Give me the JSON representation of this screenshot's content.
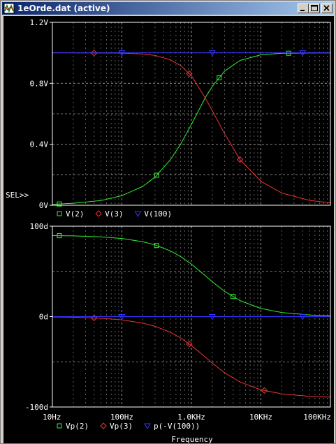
{
  "window": {
    "title": "1eOrde.dat (active)"
  },
  "colors": {
    "background": "#000000",
    "grid": "#9a9a9a",
    "text": "#ffffff",
    "v2": "#33ee33",
    "v3": "#ee3333",
    "v100": "#3333ff",
    "titlebar": "#0a246a"
  },
  "icons": {
    "app": "probe-icon",
    "minimize": "minimize-icon",
    "maximize": "maximize-icon",
    "close": "close-icon"
  },
  "x_ticks": [
    "10Hz",
    "100Hz",
    "1.0KHz",
    "10KHz",
    "100KHz"
  ],
  "x_axis_label": "Frequency",
  "sel_marker": "SEL>>",
  "chart_data": [
    {
      "type": "line",
      "x_scale": "log",
      "xlim": [
        10,
        100000
      ],
      "ylim": [
        0,
        1.2
      ],
      "y_ticks": [
        "1.2V",
        "0.8V",
        "0.4V",
        "0V"
      ],
      "y_tick_values": [
        1.2,
        0.8,
        0.4,
        0
      ],
      "grid": true,
      "legend_position": "bottom-left",
      "series": [
        {
          "name": "V(2)",
          "marker": "square",
          "color": "#33ee33",
          "x": [
            10,
            20,
            50,
            100,
            200,
            300,
            500,
            700,
            1000,
            1600,
            2000,
            3000,
            5000,
            10000,
            20000,
            50000,
            100000
          ],
          "y": [
            0.006,
            0.013,
            0.031,
            0.063,
            0.124,
            0.185,
            0.3,
            0.4,
            0.53,
            0.71,
            0.78,
            0.88,
            0.95,
            0.987,
            0.997,
            0.999,
            1.0
          ]
        },
        {
          "name": "V(3)",
          "marker": "diamond",
          "color": "#ee3333",
          "x": [
            10,
            20,
            50,
            100,
            200,
            300,
            500,
            700,
            1000,
            1600,
            2000,
            3000,
            5000,
            10000,
            20000,
            50000,
            100000
          ],
          "y": [
            1.0,
            1.0,
            0.999,
            0.998,
            0.992,
            0.983,
            0.954,
            0.916,
            0.85,
            0.7,
            0.62,
            0.47,
            0.3,
            0.157,
            0.08,
            0.032,
            0.016
          ]
        },
        {
          "name": "V(100)",
          "marker": "triangle-down",
          "color": "#3333ff",
          "x": [
            10,
            100000
          ],
          "y": [
            1.0,
            1.0
          ]
        }
      ]
    },
    {
      "type": "line",
      "x_scale": "log",
      "xlim": [
        10,
        100000
      ],
      "ylim": [
        -100,
        100
      ],
      "y_ticks": [
        "100d",
        "0d",
        "-100d"
      ],
      "y_tick_values": [
        100,
        0,
        -100
      ],
      "grid": true,
      "legend_position": "bottom-left",
      "series": [
        {
          "name": "Vp(2)",
          "marker": "square",
          "color": "#33ee33",
          "x": [
            10,
            20,
            50,
            100,
            200,
            300,
            500,
            700,
            1000,
            1600,
            2000,
            3000,
            5000,
            10000,
            20000,
            50000,
            100000
          ],
          "y": [
            89.6,
            89.3,
            88.2,
            86.4,
            82.8,
            79.3,
            72.6,
            66.4,
            58.0,
            45.0,
            38.5,
            27.9,
            17.7,
            9.0,
            4.5,
            1.8,
            0.9
          ]
        },
        {
          "name": "Vp(3)",
          "marker": "diamond",
          "color": "#ee3333",
          "x": [
            10,
            20,
            50,
            100,
            200,
            300,
            500,
            700,
            1000,
            1600,
            2000,
            3000,
            5000,
            10000,
            20000,
            50000,
            100000
          ],
          "y": [
            -0.4,
            -0.7,
            -1.8,
            -3.6,
            -7.2,
            -10.7,
            -17.4,
            -23.6,
            -32.0,
            -45.0,
            -51.5,
            -62.1,
            -72.3,
            -81.0,
            -85.5,
            -88.2,
            -89.1
          ]
        },
        {
          "name": "p(-V(100))",
          "marker": "triangle-down",
          "color": "#3333ff",
          "x": [
            10,
            100000
          ],
          "y": [
            0,
            0
          ]
        }
      ]
    }
  ]
}
